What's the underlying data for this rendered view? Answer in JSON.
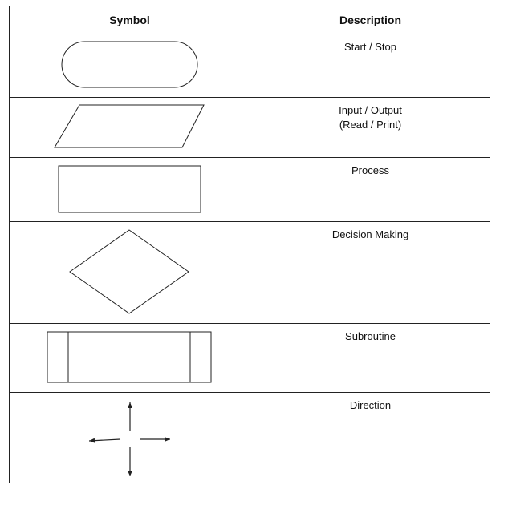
{
  "header": {
    "symbol": "Symbol",
    "description": "Description"
  },
  "rows": [
    {
      "symbol_icon": "terminator-shape",
      "description": [
        "Start / Stop"
      ]
    },
    {
      "symbol_icon": "parallelogram-shape",
      "description": [
        "Input / Output",
        "(Read / Print)"
      ]
    },
    {
      "symbol_icon": "rectangle-shape",
      "description": [
        "Process"
      ]
    },
    {
      "symbol_icon": "diamond-shape",
      "description": [
        "Decision Making"
      ]
    },
    {
      "symbol_icon": "subroutine-shape",
      "description": [
        "Subroutine"
      ]
    },
    {
      "symbol_icon": "four-arrows-shape",
      "description": [
        "Direction"
      ]
    }
  ],
  "colors": {
    "line": "#222222",
    "background": "#ffffff"
  }
}
